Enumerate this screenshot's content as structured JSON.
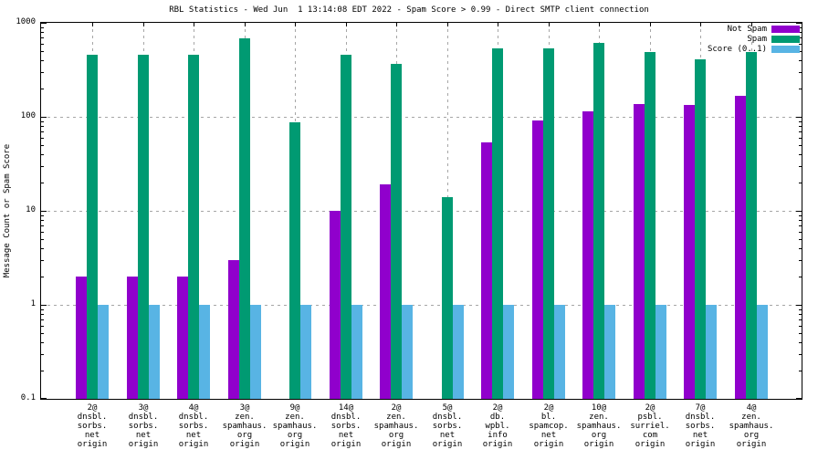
{
  "title": "RBL Statistics - Wed Jun  1 13:14:08 EDT 2022 - Spam Score > 0.99 - Direct SMTP client connection",
  "y_axis_label": "Message Count or Spam Score",
  "colors": {
    "not_spam": "#9000cc",
    "spam": "#009a72",
    "score": "#58b4e4",
    "grid": "#a6a6a6",
    "axis": "#000000",
    "background": "#ffffff",
    "text": "#000000"
  },
  "legend": [
    {
      "label": "Not Spam",
      "color_key": "not_spam"
    },
    {
      "label": "Spam",
      "color_key": "spam"
    },
    {
      "label": "Score (0..1)",
      "color_key": "score"
    }
  ],
  "chart_data": {
    "type": "bar",
    "title": "RBL Statistics - Wed Jun  1 13:14:08 EDT 2022 - Spam Score > 0.99 - Direct SMTP client connection",
    "xlabel": "",
    "ylabel": "Message Count or Spam Score",
    "y_scale": "log",
    "ylim": [
      0.1,
      1000
    ],
    "y_ticks": [
      {
        "value": 1000,
        "label": "1000"
      },
      {
        "value": 100,
        "label": "100"
      },
      {
        "value": 10,
        "label": "10"
      },
      {
        "value": 1,
        "label": "1"
      },
      {
        "value": 0.1,
        "label": "0.1"
      }
    ],
    "grid": true,
    "legend_position": "top-right",
    "categories": [
      "2@\ndnsbl.\nsorbs.\nnet\norigin",
      "3@\ndnsbl.\nsorbs.\nnet\norigin",
      "4@\ndnsbl.\nsorbs.\nnet\norigin",
      "3@\nzen.\nspamhaus.\norg\norigin",
      "9@\nzen.\nspamhaus.\norg\norigin",
      "14@\ndnsbl.\nsorbs.\nnet\norigin",
      "2@\nzen.\nspamhaus.\norg\norigin",
      "5@\ndnsbl.\nsorbs.\nnet\norigin",
      "2@\ndb.\nwpbl.\ninfo\norigin",
      "2@\nbl.\nspamcop.\nnet\norigin",
      "10@\nzen.\nspamhaus.\norg\norigin",
      "2@\npsbl.\nsurriel.\ncom\norigin",
      "7@\ndnsbl.\nsorbs.\nnet\norigin",
      "4@\nzen.\nspamhaus.\norg\norigin"
    ],
    "series": [
      {
        "name": "Not Spam",
        "color_key": "not_spam",
        "values": [
          2,
          2,
          2,
          3,
          null,
          10,
          19,
          null,
          53,
          92,
          115,
          137,
          133,
          168
        ]
      },
      {
        "name": "Spam",
        "color_key": "spam",
        "values": [
          460,
          460,
          460,
          690,
          87,
          455,
          365,
          14,
          530,
          535,
          610,
          495,
          410,
          485
        ]
      },
      {
        "name": "Score (0..1)",
        "color_key": "score",
        "values": [
          1,
          1,
          1,
          1,
          1,
          1,
          1,
          1,
          1,
          1,
          1,
          1,
          1,
          1
        ]
      }
    ]
  }
}
